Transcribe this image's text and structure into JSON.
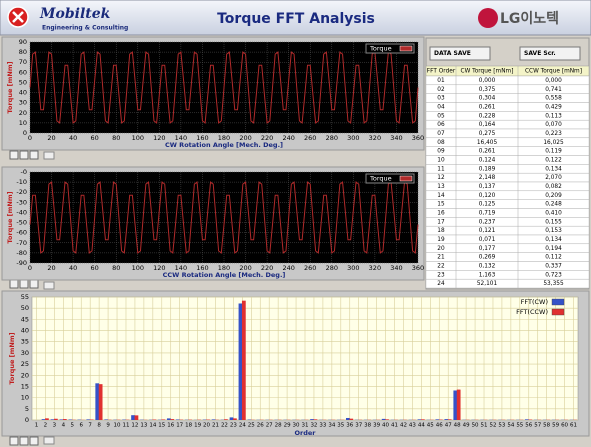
{
  "header": {
    "logo": "Mobiltek",
    "logo_sub": "Engineering & Consulting",
    "title": "Torque FFT Analysis",
    "brand": "LG이노텍"
  },
  "chart_data": [
    {
      "type": "line",
      "x_label": "CW Rotation Angle [Mech. Deg.]",
      "y_label": "Torque [mNm]",
      "xlim": [
        0,
        360
      ],
      "xticks": [
        0,
        20,
        40,
        60,
        80,
        100,
        120,
        140,
        160,
        180,
        200,
        220,
        240,
        260,
        280,
        300,
        320,
        340,
        360
      ],
      "ylim": [
        0,
        90
      ],
      "yticks": [
        0,
        10,
        20,
        30,
        40,
        50,
        60,
        70,
        80,
        90
      ],
      "grid": true,
      "x": [
        0,
        2.5,
        5,
        7.5,
        10,
        12.5,
        15,
        17.5,
        20,
        22.5,
        25,
        27.5,
        30,
        32.5,
        35,
        37.5,
        40,
        42.5,
        45,
        47.5,
        50,
        52.5,
        55,
        57.5,
        60,
        62.5,
        65,
        67.5,
        70,
        72.5,
        75,
        77.5,
        80,
        82.5,
        85,
        87.5,
        90,
        92.5,
        95,
        97.5,
        100,
        102.5,
        105,
        107.5,
        110,
        112.5,
        115,
        117.5,
        120,
        122.5,
        125,
        127.5,
        130,
        132.5,
        135,
        137.5,
        140,
        142.5,
        145,
        147.5,
        150,
        152.5,
        155,
        157.5,
        160,
        162.5,
        165,
        167.5,
        170,
        172.5,
        175,
        177.5,
        180,
        182.5,
        185,
        187.5,
        190,
        192.5,
        195,
        197.5,
        200,
        202.5,
        205,
        207.5,
        210,
        212.5,
        215,
        217.5,
        220,
        222.5,
        225,
        227.5,
        230,
        232.5,
        235,
        237.5,
        240,
        242.5,
        245,
        247.5,
        250,
        252.5,
        255,
        257.5,
        260,
        262.5,
        265,
        267.5,
        270,
        272.5,
        275,
        277.5,
        280,
        282.5,
        285,
        287.5,
        290,
        292.5,
        295,
        297.5,
        300,
        302.5,
        305,
        307.5,
        310,
        312.5,
        315,
        317.5,
        320,
        322.5,
        325,
        327.5,
        330,
        332.5,
        335,
        337.5,
        340,
        342.5,
        345,
        347.5,
        350,
        352.5,
        355,
        357.5,
        360
      ],
      "series": [
        {
          "name": "Torque",
          "color": "#b02a2a",
          "values": [
            45,
            78,
            80,
            52,
            23,
            23,
            52,
            80,
            78,
            45,
            12,
            10,
            38,
            67,
            67,
            38,
            10,
            12,
            45,
            78,
            80,
            52,
            23,
            23,
            52,
            80,
            78,
            45,
            12,
            10,
            38,
            67,
            67,
            38,
            10,
            12,
            45,
            78,
            80,
            52,
            23,
            23,
            52,
            80,
            78,
            45,
            12,
            10,
            38,
            67,
            67,
            38,
            10,
            12,
            45,
            78,
            80,
            52,
            23,
            23,
            52,
            80,
            78,
            45,
            12,
            10,
            38,
            67,
            67,
            38,
            10,
            12,
            45,
            78,
            80,
            52,
            23,
            23,
            52,
            80,
            78,
            45,
            12,
            10,
            38,
            67,
            67,
            38,
            10,
            12,
            45,
            78,
            80,
            52,
            23,
            23,
            52,
            80,
            78,
            45,
            12,
            10,
            38,
            67,
            67,
            38,
            10,
            12,
            45,
            78,
            80,
            52,
            23,
            23,
            52,
            80,
            78,
            45,
            12,
            10,
            38,
            67,
            67,
            38,
            10,
            12,
            45,
            78,
            80,
            52,
            23,
            23,
            52,
            80,
            78,
            45,
            12,
            10,
            38,
            67,
            67,
            38,
            10,
            12,
            45
          ]
        }
      ]
    },
    {
      "type": "line",
      "x_label": "CCW Rotation Angle [Mech. Deg.]",
      "y_label": "Torque [mNm]",
      "xlim": [
        0,
        360
      ],
      "xticks": [
        0,
        20,
        40,
        60,
        80,
        100,
        120,
        140,
        160,
        180,
        200,
        220,
        240,
        260,
        280,
        300,
        320,
        340,
        360
      ],
      "ylim": [
        -90,
        0
      ],
      "yticks": [
        {
          "value": 0,
          "label": "-0"
        },
        -10,
        -20,
        -30,
        -40,
        -50,
        -60,
        -70,
        -80,
        -90
      ],
      "grid": true,
      "x": [
        0,
        2.5,
        5,
        7.5,
        10,
        12.5,
        15,
        17.5,
        20,
        22.5,
        25,
        27.5,
        30,
        32.5,
        35,
        37.5,
        40,
        42.5,
        45,
        47.5,
        50,
        52.5,
        55,
        57.5,
        60,
        62.5,
        65,
        67.5,
        70,
        72.5,
        75,
        77.5,
        80,
        82.5,
        85,
        87.5,
        90,
        92.5,
        95,
        97.5,
        100,
        102.5,
        105,
        107.5,
        110,
        112.5,
        115,
        117.5,
        120,
        122.5,
        125,
        127.5,
        130,
        132.5,
        135,
        137.5,
        140,
        142.5,
        145,
        147.5,
        150,
        152.5,
        155,
        157.5,
        160,
        162.5,
        165,
        167.5,
        170,
        172.5,
        175,
        177.5,
        180,
        182.5,
        185,
        187.5,
        190,
        192.5,
        195,
        197.5,
        200,
        202.5,
        205,
        207.5,
        210,
        212.5,
        215,
        217.5,
        220,
        222.5,
        225,
        227.5,
        230,
        232.5,
        235,
        237.5,
        240,
        242.5,
        245,
        247.5,
        250,
        252.5,
        255,
        257.5,
        260,
        262.5,
        265,
        267.5,
        270,
        272.5,
        275,
        277.5,
        280,
        282.5,
        285,
        287.5,
        290,
        292.5,
        295,
        297.5,
        300,
        302.5,
        305,
        307.5,
        310,
        312.5,
        315,
        317.5,
        320,
        322.5,
        325,
        327.5,
        330,
        332.5,
        335,
        337.5,
        340,
        342.5,
        345,
        347.5,
        350,
        352.5,
        355,
        357.5,
        360
      ],
      "series": [
        {
          "name": "Torque",
          "color": "#b02a2a",
          "values": [
            -52,
            -23,
            -23,
            -52,
            -80,
            -78,
            -45,
            -12,
            -10,
            -38,
            -67,
            -67,
            -38,
            -10,
            -12,
            -45,
            -78,
            -80,
            -52,
            -23,
            -23,
            -52,
            -80,
            -78,
            -45,
            -12,
            -10,
            -38,
            -67,
            -67,
            -38,
            -10,
            -12,
            -45,
            -78,
            -80,
            -52,
            -23,
            -23,
            -52,
            -80,
            -78,
            -45,
            -12,
            -10,
            -38,
            -67,
            -67,
            -38,
            -10,
            -12,
            -45,
            -78,
            -80,
            -52,
            -23,
            -23,
            -52,
            -80,
            -78,
            -45,
            -12,
            -10,
            -38,
            -67,
            -67,
            -38,
            -10,
            -12,
            -45,
            -78,
            -80,
            -52,
            -23,
            -23,
            -52,
            -80,
            -78,
            -45,
            -12,
            -10,
            -38,
            -67,
            -67,
            -38,
            -10,
            -12,
            -45,
            -78,
            -80,
            -52,
            -23,
            -23,
            -52,
            -80,
            -78,
            -45,
            -12,
            -10,
            -38,
            -67,
            -67,
            -38,
            -10,
            -12,
            -45,
            -78,
            -80,
            -52,
            -23,
            -23,
            -52,
            -80,
            -78,
            -45,
            -12,
            -10,
            -38,
            -67,
            -67,
            -38,
            -10,
            -12,
            -45,
            -78,
            -80,
            -52,
            -23,
            -23,
            -52,
            -80,
            -78,
            -45,
            -12,
            -10,
            -38,
            -67,
            -67,
            -38,
            -10,
            -12,
            -45,
            -78,
            -80,
            -52
          ]
        }
      ]
    },
    {
      "type": "bar",
      "x_label": "Order",
      "y_label": "Torque [mNm]",
      "ylim": [
        0,
        55
      ],
      "yticks": [
        0,
        5,
        10,
        15,
        20,
        25,
        30,
        35,
        40,
        45,
        50,
        55
      ],
      "grid": true,
      "categories": [
        1,
        2,
        3,
        4,
        5,
        6,
        7,
        8,
        9,
        10,
        11,
        12,
        13,
        14,
        15,
        16,
        17,
        18,
        19,
        20,
        21,
        22,
        23,
        24,
        25,
        26,
        27,
        28,
        29,
        30,
        31,
        32,
        33,
        34,
        35,
        36,
        37,
        38,
        39,
        40,
        41,
        42,
        43,
        44,
        45,
        46,
        47,
        48,
        49,
        50,
        51,
        52,
        53,
        54,
        55,
        56,
        57,
        58,
        59,
        60,
        61
      ],
      "series": [
        {
          "name": "FFT(CW)",
          "color": "#3552c8",
          "values": [
            0,
            0.375,
            0.304,
            0.261,
            0.228,
            0.164,
            0.275,
            16.405,
            0.261,
            0.124,
            0.189,
            2.148,
            0.137,
            0.12,
            0.125,
            0.719,
            0.237,
            0.121,
            0.071,
            0.177,
            0.269,
            0.132,
            1.163,
            52.101,
            0.2,
            0.1,
            0.1,
            0.1,
            0.1,
            0.1,
            0.1,
            0.4,
            0.1,
            0.1,
            0.1,
            0.9,
            0.1,
            0.1,
            0.1,
            0.5,
            0.1,
            0.1,
            0.1,
            0.3,
            0.1,
            0.3,
            0.4,
            13.2,
            0.1,
            0.1,
            0.1,
            0.1,
            0.1,
            0.1,
            0.1,
            0.3,
            0.1,
            0.1,
            0.1,
            0.1,
            0.1
          ]
        },
        {
          "name": "FFT(CCW)",
          "color": "#e03030",
          "values": [
            0,
            0.741,
            0.558,
            0.429,
            0.113,
            0.07,
            0.223,
            16.025,
            0.119,
            0.122,
            0.134,
            2.07,
            0.082,
            0.209,
            0.248,
            0.41,
            0.155,
            0.153,
            0.134,
            0.194,
            0.112,
            0.337,
            0.723,
            53.355,
            0.1,
            0.1,
            0.1,
            0.1,
            0.1,
            0.1,
            0.1,
            0.3,
            0.1,
            0.1,
            0.1,
            0.6,
            0.1,
            0.1,
            0.1,
            0.3,
            0.1,
            0.1,
            0.1,
            0.3,
            0.1,
            0.2,
            0.3,
            13.6,
            0.1,
            0.1,
            0.1,
            0.1,
            0.1,
            0.1,
            0.1,
            0.2,
            0.1,
            0.1,
            0.1,
            0.1,
            0.1
          ]
        }
      ]
    }
  ],
  "table": {
    "buttons": [
      "DATA SAVE",
      "SAVE Scr."
    ],
    "headers": [
      "FFT Order",
      "CW Torque [mNm]",
      "CCW Torque [mNm]"
    ],
    "rows": [
      [
        "01",
        "0,000",
        "0,000"
      ],
      [
        "02",
        "0,375",
        "0,741"
      ],
      [
        "03",
        "0,304",
        "0,558"
      ],
      [
        "04",
        "0,261",
        "0,429"
      ],
      [
        "05",
        "0,228",
        "0,113"
      ],
      [
        "06",
        "0,164",
        "0,070"
      ],
      [
        "07",
        "0,275",
        "0,223"
      ],
      [
        "08",
        "16,405",
        "16,025"
      ],
      [
        "09",
        "0,261",
        "0,119"
      ],
      [
        "10",
        "0,124",
        "0,122"
      ],
      [
        "11",
        "0,189",
        "0,134"
      ],
      [
        "12",
        "2,148",
        "2,070"
      ],
      [
        "13",
        "0,137",
        "0,082"
      ],
      [
        "14",
        "0,120",
        "0,209"
      ],
      [
        "15",
        "0,125",
        "0,248"
      ],
      [
        "16",
        "0,719",
        "0,410"
      ],
      [
        "17",
        "0,237",
        "0,155"
      ],
      [
        "18",
        "0,121",
        "0,153"
      ],
      [
        "19",
        "0,071",
        "0,134"
      ],
      [
        "20",
        "0,177",
        "0,194"
      ],
      [
        "21",
        "0,269",
        "0,112"
      ],
      [
        "22",
        "0,132",
        "0,337"
      ],
      [
        "23",
        "1,163",
        "0,723"
      ],
      [
        "24",
        "52,101",
        "53,355"
      ]
    ]
  }
}
